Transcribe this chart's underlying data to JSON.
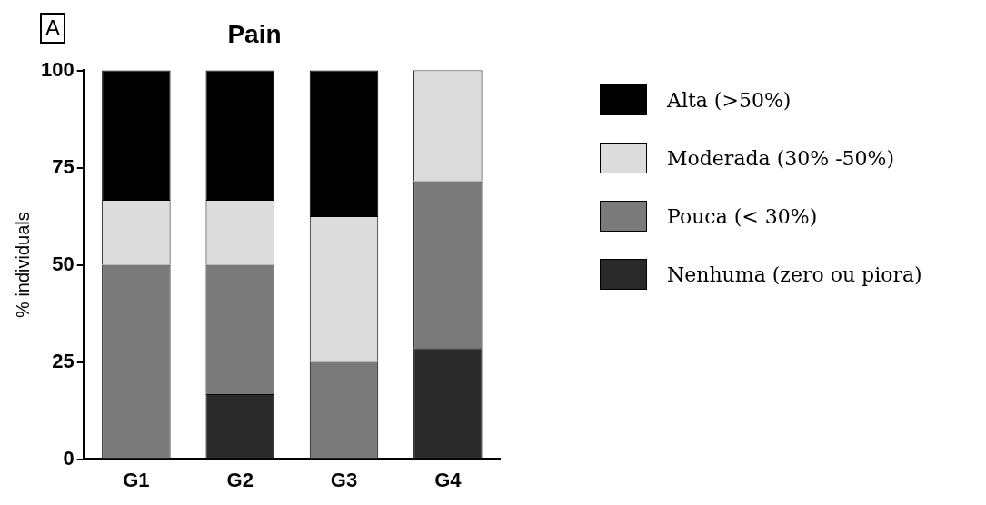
{
  "chart_data": {
    "type": "bar",
    "title": "Pain",
    "ylabel": "% individuals",
    "annotations": [
      "A"
    ],
    "categories": [
      "G1",
      "G2",
      "G3",
      "G4"
    ],
    "stacked": true,
    "series": [
      {
        "name": "Nenhuma (zero ou piora)",
        "color": "#2a2a2a",
        "values": [
          0,
          16.7,
          0,
          28.6
        ]
      },
      {
        "name": "Pouca (< 30%)",
        "color": "#7a7a7a",
        "values": [
          50,
          33.3,
          25,
          42.9
        ]
      },
      {
        "name": "Moderada (30% -50%)",
        "color": "#dcdcdc",
        "values": [
          16.7,
          16.7,
          37.5,
          28.6
        ]
      },
      {
        "name": "Alta (>50%)",
        "color": "#000000",
        "values": [
          33.3,
          33.3,
          37.5,
          0
        ]
      }
    ],
    "ylim": [
      0,
      100
    ],
    "yticks": [
      0,
      25,
      50,
      75,
      100
    ],
    "grid": false,
    "legend": "right"
  }
}
